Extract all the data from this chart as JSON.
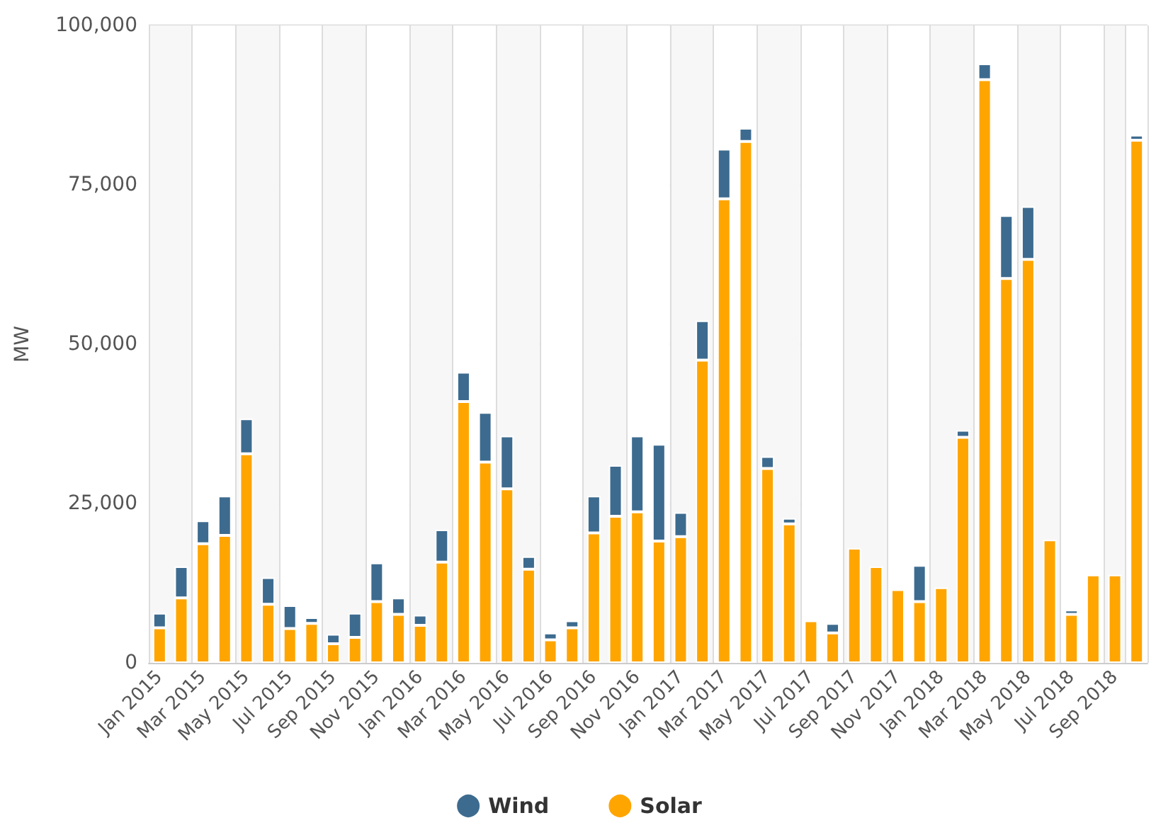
{
  "chart_data": {
    "type": "bar",
    "stacked": true,
    "ylabel": "MW",
    "legend": "bottom",
    "grid": true,
    "categories": [
      "Jan 2015",
      null,
      "Mar 2015",
      null,
      "May 2015",
      null,
      "Jul 2015",
      null,
      "Sep 2015",
      null,
      "Nov 2015",
      null,
      "Jan 2016",
      null,
      "Mar 2016",
      null,
      "May 2016",
      null,
      "Jul 2016",
      null,
      "Sep 2016",
      null,
      "Nov 2016",
      null,
      "Jan 2017",
      null,
      "Mar 2017",
      null,
      "May 2017",
      null,
      "Jul 2017",
      null,
      "Sep 2017",
      null,
      "Nov 2017",
      null,
      "Jan 2018",
      null,
      "Mar 2018",
      null,
      "May 2018",
      null,
      "Jul 2018",
      null,
      "Sep 2018",
      null
    ],
    "ylim": [
      0,
      100000
    ],
    "yticks": [
      {
        "value": 0,
        "label": "0"
      },
      {
        "value": 25000,
        "label": "25,000"
      },
      {
        "value": 50000,
        "label": "50,000"
      },
      {
        "value": 75000,
        "label": "75,000"
      },
      {
        "value": 100000,
        "label": "100,000"
      }
    ],
    "series": [
      {
        "name": "Solar",
        "color": "#ffa500",
        "values": [
          5500,
          10200,
          18700,
          20000,
          32800,
          9200,
          5400,
          6200,
          3000,
          4000,
          9600,
          7600,
          5900,
          15800,
          41000,
          31500,
          27300,
          14700,
          3600,
          5500,
          20400,
          23000,
          23700,
          19100,
          19800,
          47500,
          72800,
          81800,
          30500,
          21800,
          6600,
          4700,
          18000,
          15100,
          11500,
          9600,
          11800,
          35400,
          91500,
          60300,
          63300,
          19300,
          7600,
          13800,
          13800,
          82000
        ]
      },
      {
        "name": "Wind",
        "color": "#3d6b8f",
        "values": [
          2300,
          4900,
          3600,
          6200,
          5500,
          4200,
          3600,
          900,
          1500,
          3800,
          6100,
          2600,
          1600,
          5100,
          4600,
          7800,
          8300,
          2000,
          1100,
          1100,
          5800,
          8000,
          11900,
          15200,
          3800,
          6200,
          7800,
          2100,
          1900,
          900,
          null,
          1500,
          null,
          null,
          null,
          5700,
          null,
          1100,
          2500,
          9900,
          8300,
          null,
          700,
          null,
          null,
          800
        ]
      }
    ]
  }
}
